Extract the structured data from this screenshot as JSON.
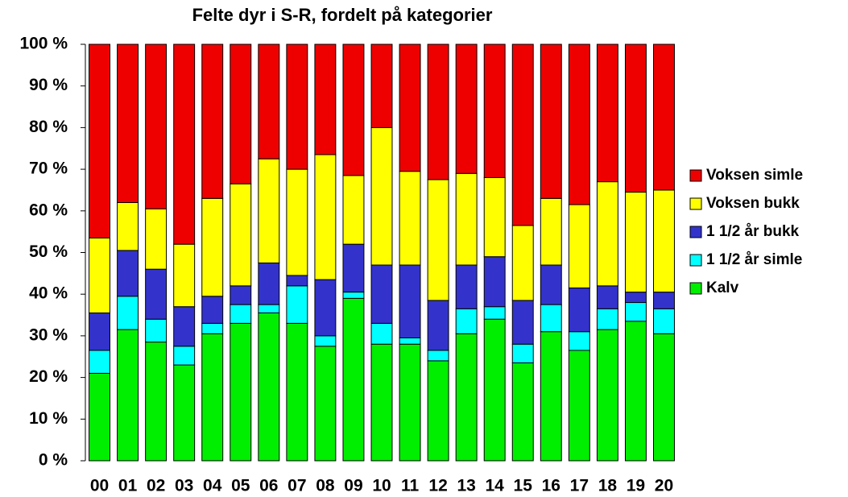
{
  "chart_data": {
    "type": "stacked_bar",
    "title": "Felte dyr i S-R, fordelt på kategorier",
    "categories": [
      "00",
      "01",
      "02",
      "03",
      "04",
      "05",
      "06",
      "07",
      "08",
      "09",
      "10",
      "11",
      "12",
      "13",
      "14",
      "15",
      "16",
      "17",
      "18",
      "19",
      "20"
    ],
    "series": [
      {
        "name": "Kalv",
        "color": "#00ee00",
        "values": [
          21,
          31.5,
          28.5,
          23,
          30.5,
          33,
          35.5,
          33,
          27.5,
          39,
          28,
          28,
          24,
          30.5,
          34,
          23.5,
          31,
          26.5,
          31.5,
          33.5,
          30.5
        ]
      },
      {
        "name": "1 1/2 år simle",
        "color": "#00ffff",
        "values": [
          5.5,
          8,
          5.5,
          4.5,
          2.5,
          4.5,
          2,
          9,
          2.5,
          1.5,
          5,
          1.5,
          2.5,
          6,
          3,
          4.5,
          6.5,
          4.5,
          5,
          4.5,
          6
        ]
      },
      {
        "name": "1 1/2 år bukk",
        "color": "#3333cc",
        "values": [
          9,
          11,
          12,
          9.5,
          6.5,
          4.5,
          10,
          2.5,
          13.5,
          11.5,
          14,
          17.5,
          12,
          10.5,
          12,
          10.5,
          9.5,
          10.5,
          5.5,
          2.5,
          4
        ]
      },
      {
        "name": "Voksen bukk",
        "color": "#ffff00",
        "values": [
          18,
          11.5,
          14.5,
          15,
          23.5,
          24.5,
          25,
          25.5,
          30,
          16.5,
          33,
          22.5,
          29,
          22,
          19,
          18,
          16,
          20,
          25,
          24,
          24.5
        ]
      },
      {
        "name": "Voksen simle",
        "color": "#ee0000",
        "values": [
          46.5,
          38,
          39.5,
          48,
          37,
          33.5,
          27.5,
          30,
          26.5,
          31.5,
          20,
          30.5,
          32.5,
          31,
          32,
          43.5,
          37,
          38.5,
          33,
          35.5,
          35
        ]
      }
    ],
    "ylim": [
      0,
      100
    ],
    "yticks": [
      {
        "value": 0,
        "label": "0 %"
      },
      {
        "value": 10,
        "label": "10 %"
      },
      {
        "value": 20,
        "label": "20 %"
      },
      {
        "value": 30,
        "label": "30 %"
      },
      {
        "value": 40,
        "label": "40 %"
      },
      {
        "value": 50,
        "label": "50 %"
      },
      {
        "value": 60,
        "label": "60 %"
      },
      {
        "value": 70,
        "label": "70 %"
      },
      {
        "value": 80,
        "label": "80 %"
      },
      {
        "value": 90,
        "label": "90 %"
      },
      {
        "value": 100,
        "label": "100 %"
      }
    ],
    "legend": "right"
  }
}
